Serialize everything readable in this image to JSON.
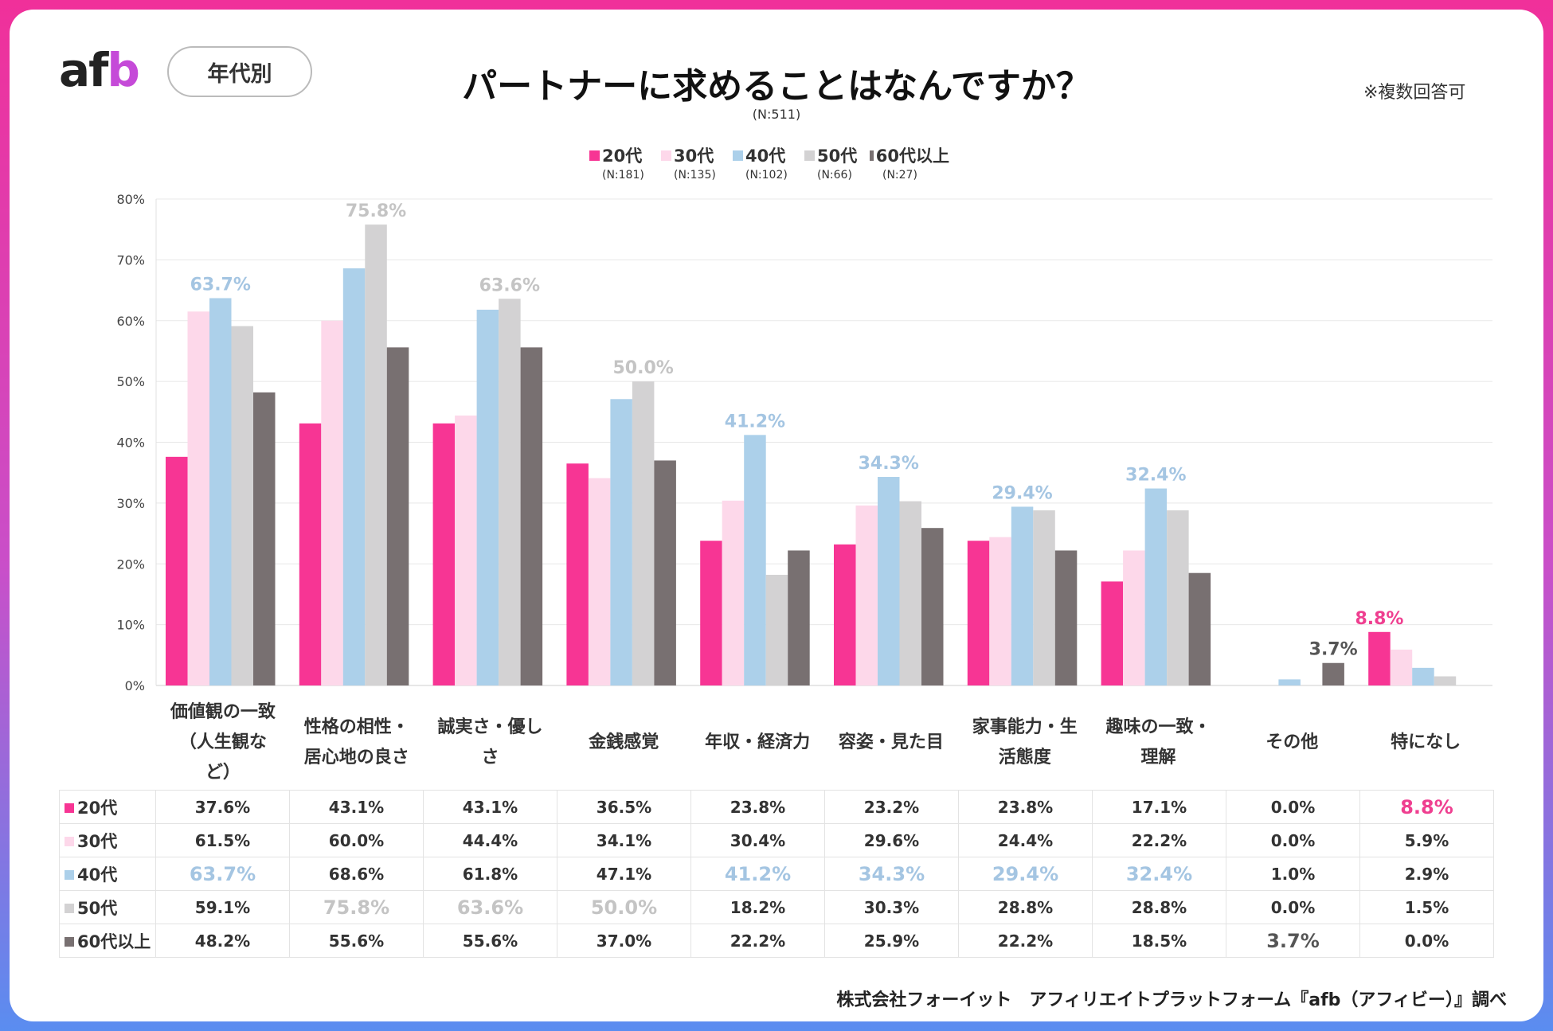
{
  "header": {
    "logo_prefix": "af",
    "logo_suffix": "b",
    "segment_label": "年代別",
    "title": "パートナーに求めることはなんですか？",
    "n_total": "(N:511)",
    "note": "※複数回答可"
  },
  "colors": {
    "20s": "#f73594",
    "30s": "#fdd8ea",
    "40s": "#acd0ea",
    "50s": "#d3d2d3",
    "60s": "#787071",
    "highlight_pink": "#ef3f90",
    "highlight_blue": "#a4c5e2",
    "highlight_gray": "#c4c4c4",
    "highlight_dark": "#555555"
  },
  "chart_data": {
    "type": "bar",
    "title": "パートナーに求めることはなんですか？",
    "ylim": [
      0,
      80
    ],
    "yticks": [
      "0%",
      "10%",
      "20%",
      "30%",
      "40%",
      "50%",
      "60%",
      "70%",
      "80%"
    ],
    "grid": true,
    "legend_position": "top-center",
    "categories": [
      "価値観の一致（人生観など）",
      "性格の相性・居心地の良さ",
      "誠実さ・優しさ",
      "金銭感覚",
      "年収・経済力",
      "容姿・見た目",
      "家事能力・生活態度",
      "趣味の一致・理解",
      "その他",
      "特になし"
    ],
    "series": [
      {
        "key": "20s",
        "name": "20代",
        "n": "(N:181)",
        "values": [
          37.6,
          43.1,
          43.1,
          36.5,
          23.8,
          23.2,
          23.8,
          17.1,
          0.0,
          8.8
        ]
      },
      {
        "key": "30s",
        "name": "30代",
        "n": "(N:135)",
        "values": [
          61.5,
          60.0,
          44.4,
          34.1,
          30.4,
          29.6,
          24.4,
          22.2,
          0.0,
          5.9
        ]
      },
      {
        "key": "40s",
        "name": "40代",
        "n": "(N:102)",
        "values": [
          63.7,
          68.6,
          61.8,
          47.1,
          41.2,
          34.3,
          29.4,
          32.4,
          1.0,
          2.9
        ]
      },
      {
        "key": "50s",
        "name": "50代",
        "n": "(N:66)",
        "values": [
          59.1,
          75.8,
          63.6,
          50.0,
          18.2,
          30.3,
          28.8,
          28.8,
          0.0,
          1.5
        ]
      },
      {
        "key": "60s",
        "name": "60代以上",
        "n": "(N:27)",
        "values": [
          48.2,
          55.6,
          55.6,
          37.0,
          22.2,
          25.9,
          22.2,
          18.5,
          3.7,
          0.0
        ]
      }
    ],
    "data_labels": [
      {
        "category": 0,
        "series": 2,
        "text": "63.7%"
      },
      {
        "category": 1,
        "series": 3,
        "text": "75.8%"
      },
      {
        "category": 2,
        "series": 3,
        "text": "63.6%"
      },
      {
        "category": 3,
        "series": 3,
        "text": "50.0%"
      },
      {
        "category": 4,
        "series": 2,
        "text": "41.2%"
      },
      {
        "category": 5,
        "series": 2,
        "text": "34.3%"
      },
      {
        "category": 6,
        "series": 2,
        "text": "29.4%"
      },
      {
        "category": 7,
        "series": 2,
        "text": "32.4%"
      },
      {
        "category": 8,
        "series": 4,
        "text": "3.7%"
      },
      {
        "category": 9,
        "series": 0,
        "text": "8.8%"
      }
    ]
  },
  "category_labels": [
    [
      "価値観の一致",
      "（人生観な",
      "ど）"
    ],
    [
      "性格の相性・",
      "居心地の良さ"
    ],
    [
      "誠実さ・優し",
      "さ"
    ],
    [
      "金銭感覚"
    ],
    [
      "年収・経済力"
    ],
    [
      "容姿・見た目"
    ],
    [
      "家事能力・生",
      "活態度"
    ],
    [
      "趣味の一致・",
      "理解"
    ],
    [
      "その他"
    ],
    [
      "特になし"
    ]
  ],
  "table": {
    "rows": [
      {
        "key": "20s",
        "label": "20代",
        "cells": [
          "37.6%",
          "43.1%",
          "43.1%",
          "36.5%",
          "23.8%",
          "23.2%",
          "23.8%",
          "17.1%",
          "0.0%",
          "8.8%"
        ]
      },
      {
        "key": "30s",
        "label": "30代",
        "cells": [
          "61.5%",
          "60.0%",
          "44.4%",
          "34.1%",
          "30.4%",
          "29.6%",
          "24.4%",
          "22.2%",
          "0.0%",
          "5.9%"
        ]
      },
      {
        "key": "40s",
        "label": "40代",
        "cells": [
          "63.7%",
          "68.6%",
          "61.8%",
          "47.1%",
          "41.2%",
          "34.3%",
          "29.4%",
          "32.4%",
          "1.0%",
          "2.9%"
        ]
      },
      {
        "key": "50s",
        "label": "50代",
        "cells": [
          "59.1%",
          "75.8%",
          "63.6%",
          "50.0%",
          "18.2%",
          "30.3%",
          "28.8%",
          "28.8%",
          "0.0%",
          "1.5%"
        ]
      },
      {
        "key": "60s",
        "label": "60代以上",
        "cells": [
          "48.2%",
          "55.6%",
          "55.6%",
          "37.0%",
          "22.2%",
          "25.9%",
          "22.2%",
          "18.5%",
          "3.7%",
          "0.0%"
        ]
      }
    ],
    "highlights": [
      {
        "row": 0,
        "col": 9,
        "style": "pink"
      },
      {
        "row": 2,
        "col": 0,
        "style": "blue"
      },
      {
        "row": 2,
        "col": 4,
        "style": "blue"
      },
      {
        "row": 2,
        "col": 5,
        "style": "blue"
      },
      {
        "row": 2,
        "col": 6,
        "style": "blue"
      },
      {
        "row": 2,
        "col": 7,
        "style": "blue"
      },
      {
        "row": 3,
        "col": 1,
        "style": "gray"
      },
      {
        "row": 3,
        "col": 2,
        "style": "gray"
      },
      {
        "row": 3,
        "col": 3,
        "style": "gray"
      },
      {
        "row": 4,
        "col": 8,
        "style": "dark"
      }
    ]
  },
  "footer": "株式会社フォーイット　アフィリエイトプラットフォーム『afb（アフィビー）』調べ"
}
